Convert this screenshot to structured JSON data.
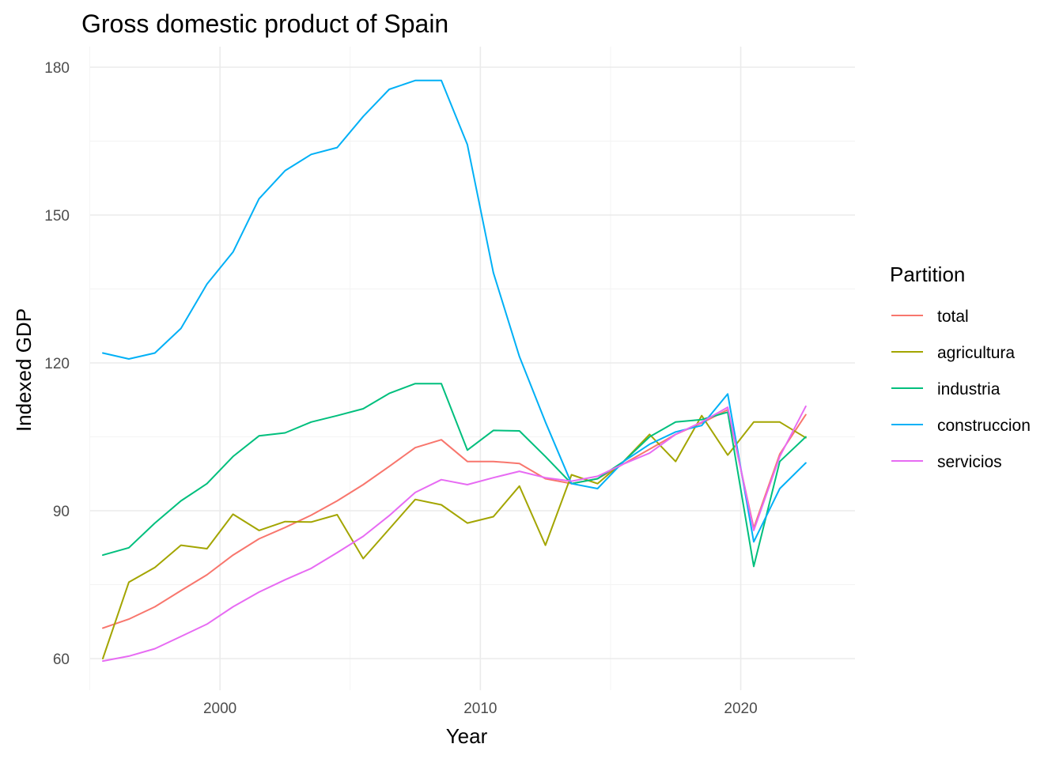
{
  "chart_data": {
    "type": "line",
    "title": "Gross domestic product of Spain",
    "xlabel": "Year",
    "ylabel": "Indexed GDP",
    "xlim": [
      1995.5,
      2022.5
    ],
    "ylim": [
      60,
      180
    ],
    "x_ticks": [
      2000,
      2010,
      2020
    ],
    "y_ticks": [
      60,
      90,
      120,
      150,
      180
    ],
    "grid": true,
    "legend": {
      "title": "Partition",
      "position": "right"
    },
    "x": [
      1995.5,
      1996.5,
      1997.5,
      1998.5,
      1999.5,
      2000.5,
      2001.5,
      2002.5,
      2003.5,
      2004.5,
      2005.5,
      2006.5,
      2007.5,
      2008.5,
      2009.5,
      2010.5,
      2011.5,
      2012.5,
      2013.5,
      2014.5,
      2015.5,
      2016.5,
      2017.5,
      2018.5,
      2019.5,
      2020.5,
      2021.5,
      2022.5
    ],
    "series": [
      {
        "name": "total",
        "color": "#F8766D",
        "values": [
          66.2,
          68.0,
          70.5,
          73.8,
          77.0,
          81.0,
          84.3,
          86.6,
          89.1,
          92.0,
          95.3,
          99.0,
          102.8,
          104.4,
          100.0,
          100.0,
          99.6,
          96.5,
          95.5,
          96.5,
          99.5,
          102.5,
          105.5,
          107.8,
          110.5,
          86.5,
          101.5,
          109.5
        ]
      },
      {
        "name": "agricultura",
        "color": "#A3A500",
        "values": [
          60.0,
          75.5,
          78.5,
          83.0,
          82.3,
          89.3,
          86.0,
          87.8,
          87.7,
          89.2,
          80.3,
          86.3,
          92.3,
          91.2,
          87.5,
          88.8,
          95.0,
          83.0,
          97.3,
          95.5,
          100.0,
          105.5,
          100.0,
          109.3,
          101.3,
          108.0,
          108.0,
          104.8
        ]
      },
      {
        "name": "industria",
        "color": "#00BF7D",
        "values": [
          81.0,
          82.5,
          87.5,
          92.0,
          95.5,
          101.0,
          105.2,
          105.8,
          108.0,
          109.3,
          110.7,
          113.8,
          115.8,
          115.8,
          102.3,
          106.3,
          106.2,
          101.0,
          95.5,
          96.5,
          100.0,
          105.0,
          108.0,
          108.5,
          110.0,
          78.7,
          100.0,
          105.0
        ]
      },
      {
        "name": "construccion",
        "color": "#00B0F6",
        "values": [
          122.0,
          120.8,
          122.0,
          127.0,
          136.0,
          142.5,
          153.3,
          159.0,
          162.3,
          163.7,
          170.0,
          175.5,
          177.3,
          177.3,
          164.3,
          138.3,
          121.3,
          108.0,
          95.5,
          94.5,
          100.0,
          103.5,
          106.0,
          107.3,
          113.7,
          83.7,
          94.5,
          99.7
        ]
      },
      {
        "name": "servicios",
        "color": "#E76BF3",
        "values": [
          59.5,
          60.5,
          62.0,
          64.5,
          67.0,
          70.5,
          73.5,
          76.0,
          78.3,
          81.5,
          84.8,
          89.0,
          93.7,
          96.3,
          95.3,
          96.7,
          98.0,
          96.7,
          96.0,
          97.0,
          99.5,
          101.7,
          105.5,
          108.0,
          111.0,
          86.0,
          101.0,
          111.2
        ]
      }
    ]
  }
}
